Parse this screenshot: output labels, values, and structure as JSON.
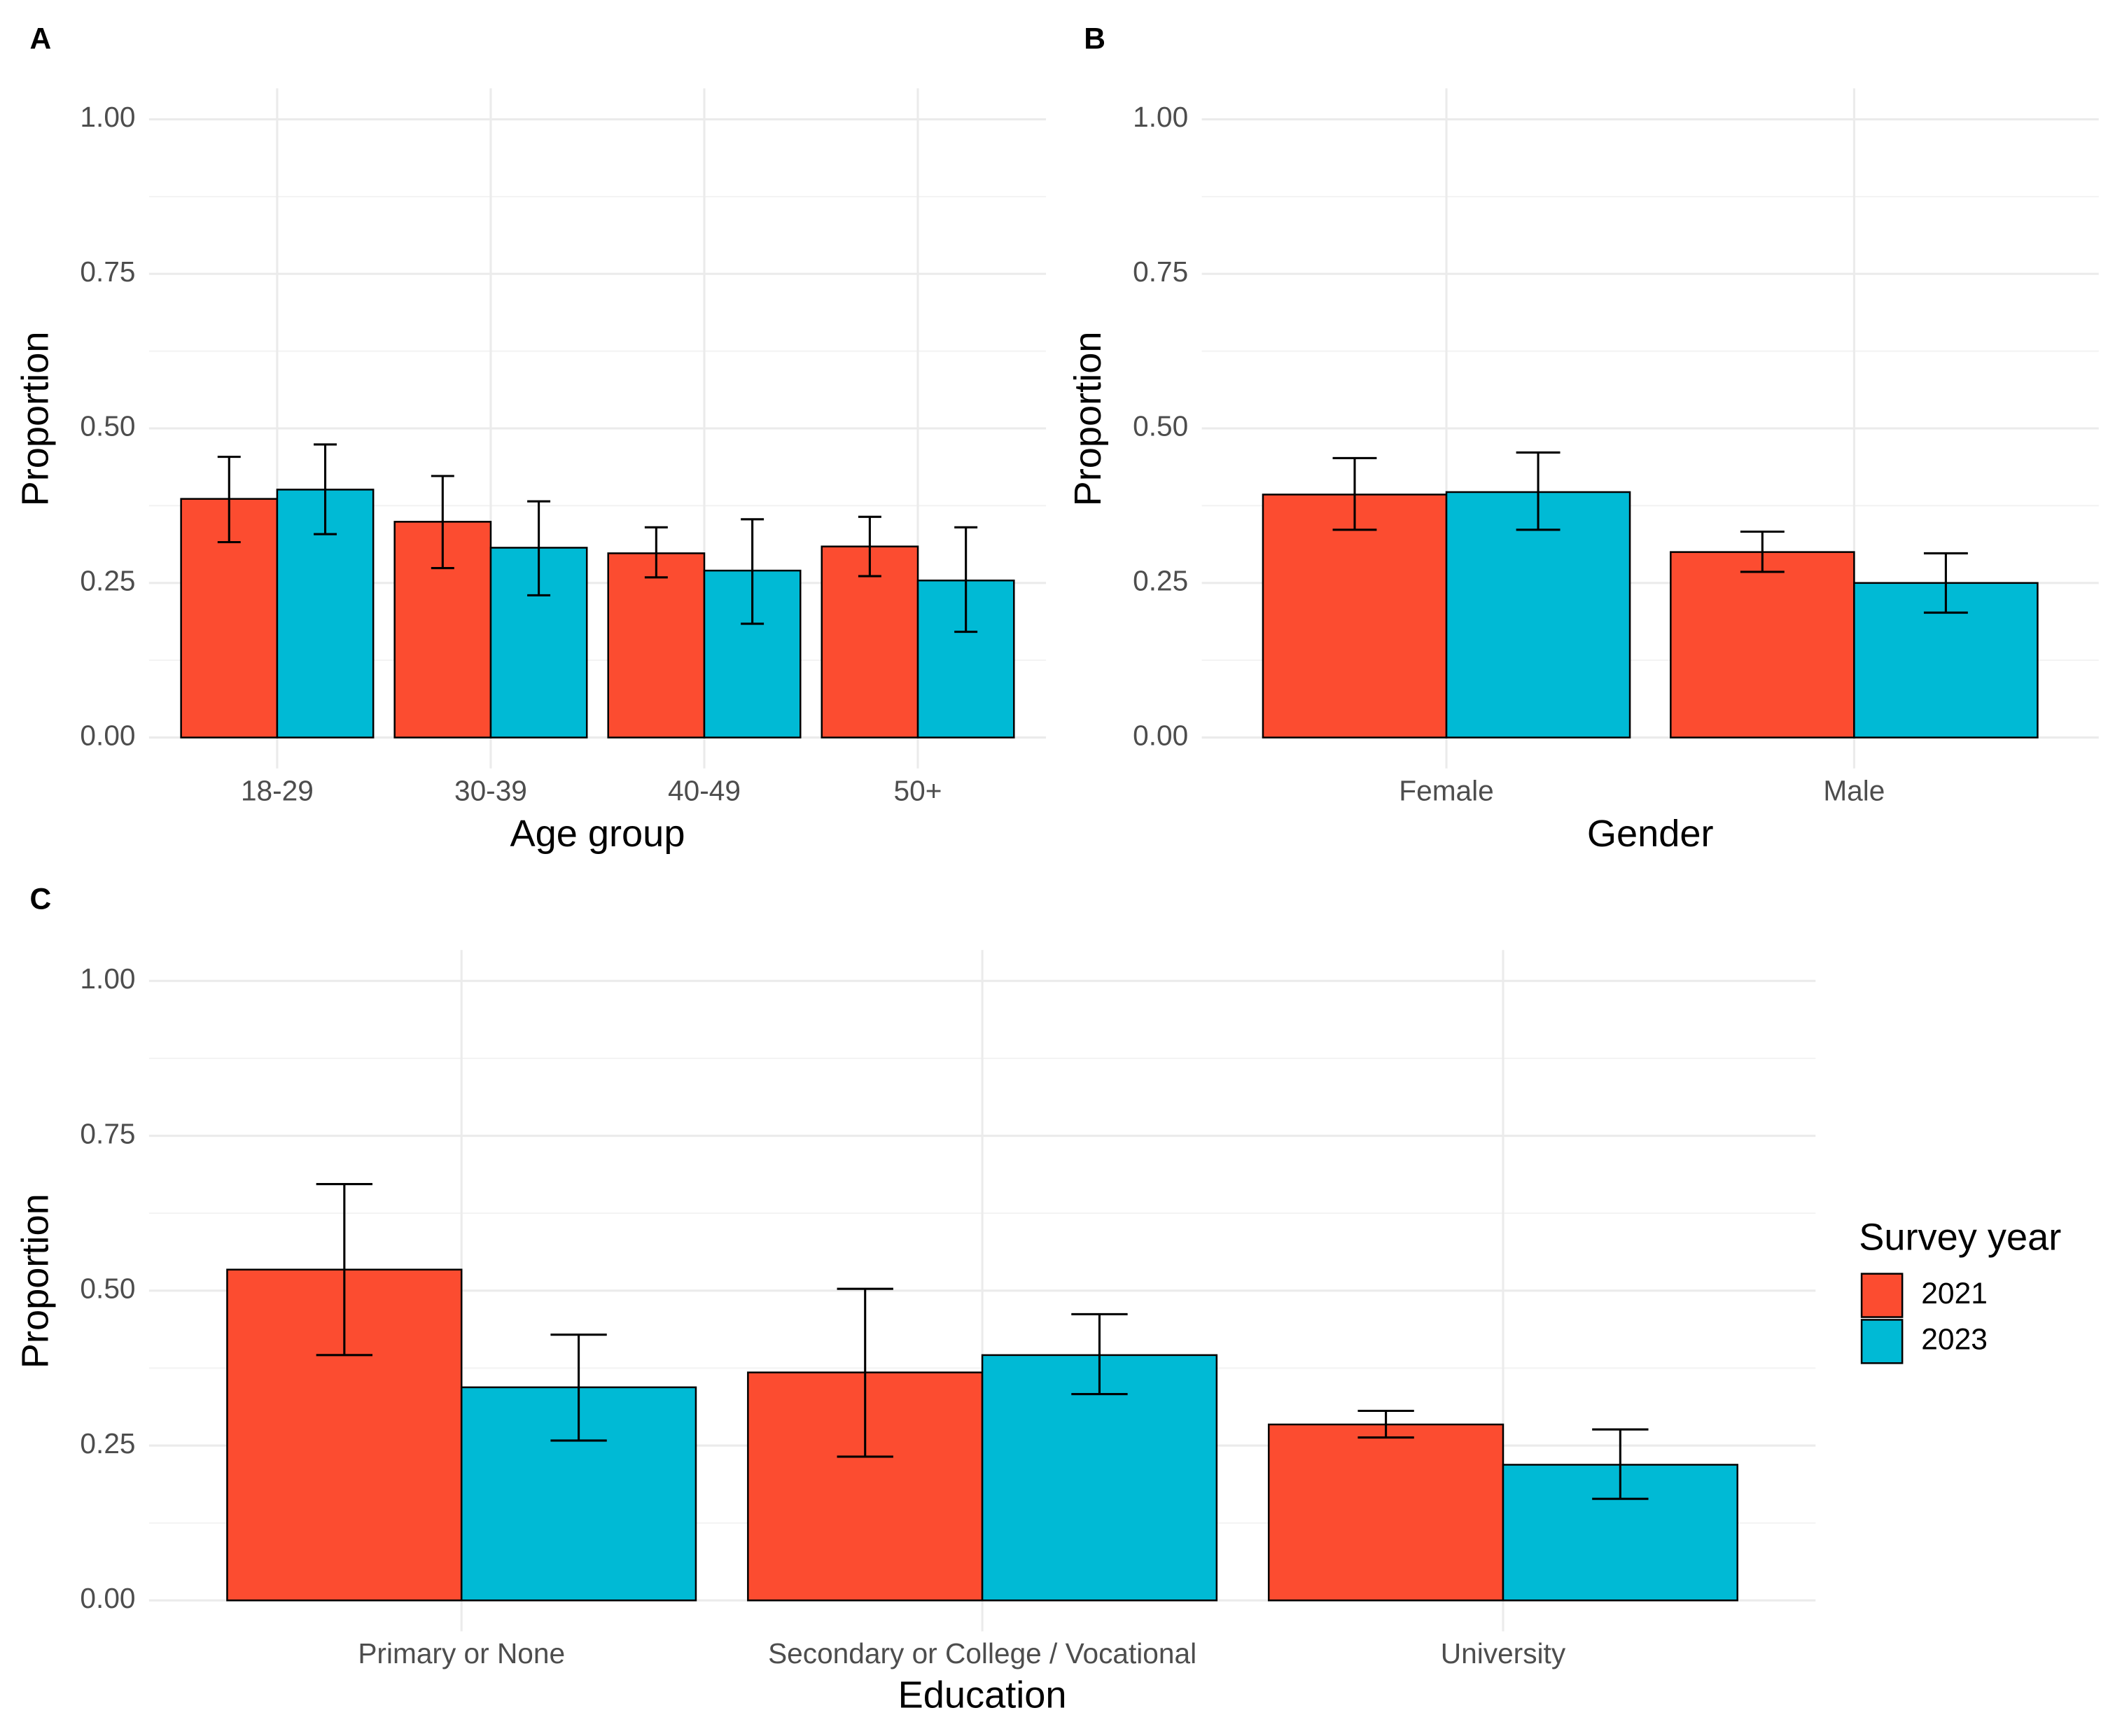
{
  "chart_data": [
    {
      "type": "bar",
      "panel": "A",
      "x_label": "Age group",
      "y_label": "Proportion",
      "categories": [
        "18-29",
        "30-39",
        "40-49",
        "50+"
      ],
      "series": [
        {
          "name": "2021",
          "color": "#fc4c30",
          "values": [
            0.386,
            0.349,
            0.298,
            0.309
          ],
          "lower": [
            0.316,
            0.274,
            0.259,
            0.261
          ],
          "upper": [
            0.454,
            0.423,
            0.34,
            0.357
          ]
        },
        {
          "name": "2023",
          "color": "#00bad5",
          "values": [
            0.401,
            0.307,
            0.27,
            0.254
          ],
          "lower": [
            0.329,
            0.23,
            0.184,
            0.171
          ],
          "upper": [
            0.474,
            0.382,
            0.353,
            0.34
          ]
        }
      ],
      "ylim": [
        -0.05,
        1.05
      ],
      "yticks": [
        {
          "value": 0,
          "label": "0.00"
        },
        {
          "value": 0.25,
          "label": "0.25"
        },
        {
          "value": 0.5,
          "label": "0.50"
        },
        {
          "value": 0.75,
          "label": "0.75"
        },
        {
          "value": 1,
          "label": "1.00"
        }
      ],
      "grid": true
    },
    {
      "type": "bar",
      "panel": "B",
      "x_label": "Gender",
      "y_label": "Proportion",
      "categories": [
        "Female",
        "Male"
      ],
      "series": [
        {
          "name": "2021",
          "color": "#fc4c30",
          "values": [
            0.393,
            0.3
          ],
          "lower": [
            0.336,
            0.268
          ],
          "upper": [
            0.452,
            0.333
          ]
        },
        {
          "name": "2023",
          "color": "#00bad5",
          "values": [
            0.397,
            0.25
          ],
          "lower": [
            0.336,
            0.202
          ],
          "upper": [
            0.461,
            0.298
          ]
        }
      ],
      "ylim": [
        -0.05,
        1.05
      ],
      "yticks": [
        {
          "value": 0,
          "label": "0.00"
        },
        {
          "value": 0.25,
          "label": "0.25"
        },
        {
          "value": 0.5,
          "label": "0.50"
        },
        {
          "value": 0.75,
          "label": "0.75"
        },
        {
          "value": 1,
          "label": "1.00"
        }
      ],
      "grid": true
    },
    {
      "type": "bar",
      "panel": "C",
      "x_label": "Education",
      "y_label": "Proportion",
      "categories": [
        "Primary or None",
        "Secondary or College / Vocational",
        "University"
      ],
      "series": [
        {
          "name": "2021",
          "color": "#fc4c30",
          "values": [
            0.534,
            0.368,
            0.284
          ],
          "lower": [
            0.396,
            0.232,
            0.263
          ],
          "upper": [
            0.672,
            0.503,
            0.306
          ]
        },
        {
          "name": "2023",
          "color": "#00bad5",
          "values": [
            0.344,
            0.396,
            0.219
          ],
          "lower": [
            0.258,
            0.333,
            0.164
          ],
          "upper": [
            0.429,
            0.462,
            0.276
          ]
        }
      ],
      "ylim": [
        -0.05,
        1.05
      ],
      "yticks": [
        {
          "value": 0,
          "label": "0.00"
        },
        {
          "value": 0.25,
          "label": "0.25"
        },
        {
          "value": 0.5,
          "label": "0.50"
        },
        {
          "value": 0.75,
          "label": "0.75"
        },
        {
          "value": 1,
          "label": "1.00"
        }
      ],
      "grid": true,
      "legend": "right",
      "legend_title": "Survey year"
    }
  ]
}
